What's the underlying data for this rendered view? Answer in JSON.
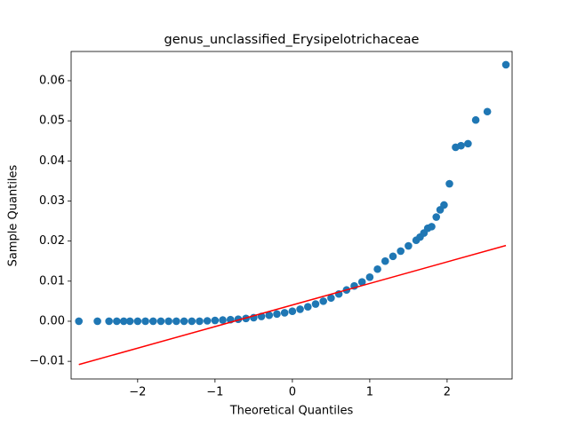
{
  "chart_data": {
    "type": "scatter",
    "title": "genus_unclassified_Erysipelotrichaceae",
    "xlabel": "Theoretical Quantiles",
    "ylabel": "Sample Quantiles",
    "xlim": [
      -2.86,
      2.84
    ],
    "ylim": [
      -0.0144,
      0.0673
    ],
    "xticks": [
      {
        "value": -2,
        "label": "−2"
      },
      {
        "value": -1,
        "label": "−1"
      },
      0,
      1,
      2
    ],
    "yticks": [
      {
        "value": -0.01,
        "label": "−0.01"
      },
      {
        "value": 0,
        "label": "0.00"
      },
      0.01,
      0.02,
      0.03,
      0.04,
      0.05,
      0.06
    ],
    "series": [
      {
        "style": "markers",
        "color": "#1f77b4",
        "x": [
          -2.76,
          -2.52,
          -2.37,
          -2.27,
          -2.18,
          -2.1,
          -2.0,
          -1.9,
          -1.8,
          -1.7,
          -1.6,
          -1.5,
          -1.4,
          -1.3,
          -1.2,
          -1.1,
          -1.0,
          -0.9,
          -0.8,
          -0.7,
          -0.6,
          -0.5,
          -0.4,
          -0.3,
          -0.2,
          -0.1,
          0,
          0.1,
          0.2,
          0.3,
          0.4,
          0.5,
          0.6,
          0.7,
          0.8,
          0.9,
          1.0,
          1.1,
          1.2,
          1.3,
          1.4,
          1.5,
          1.6,
          1.65,
          1.7,
          1.75,
          1.8,
          1.86,
          1.91,
          1.96,
          2.03,
          2.11,
          2.18,
          2.27,
          2.37,
          2.52,
          2.76
        ],
        "values": [
          0,
          0,
          0,
          0,
          0,
          0,
          0,
          0,
          0,
          0,
          0,
          0,
          0,
          0,
          0,
          0.0001,
          0.0002,
          0.0003,
          0.0004,
          0.0005,
          0.0007,
          0.0009,
          0.0012,
          0.0015,
          0.0018,
          0.0021,
          0.0025,
          0.003,
          0.0036,
          0.0043,
          0.005,
          0.0058,
          0.0068,
          0.0078,
          0.0088,
          0.0098,
          0.011,
          0.013,
          0.015,
          0.0162,
          0.0175,
          0.0188,
          0.0202,
          0.021,
          0.022,
          0.0232,
          0.0236,
          0.026,
          0.0278,
          0.029,
          0.0343,
          0.0434,
          0.0438,
          0.0443,
          0.0502,
          0.0523,
          0.064
        ]
      },
      {
        "style": "line",
        "color": "#ff0000",
        "x": [
          -2.76,
          2.76
        ],
        "values": [
          -0.0108,
          0.0189
        ]
      }
    ]
  }
}
